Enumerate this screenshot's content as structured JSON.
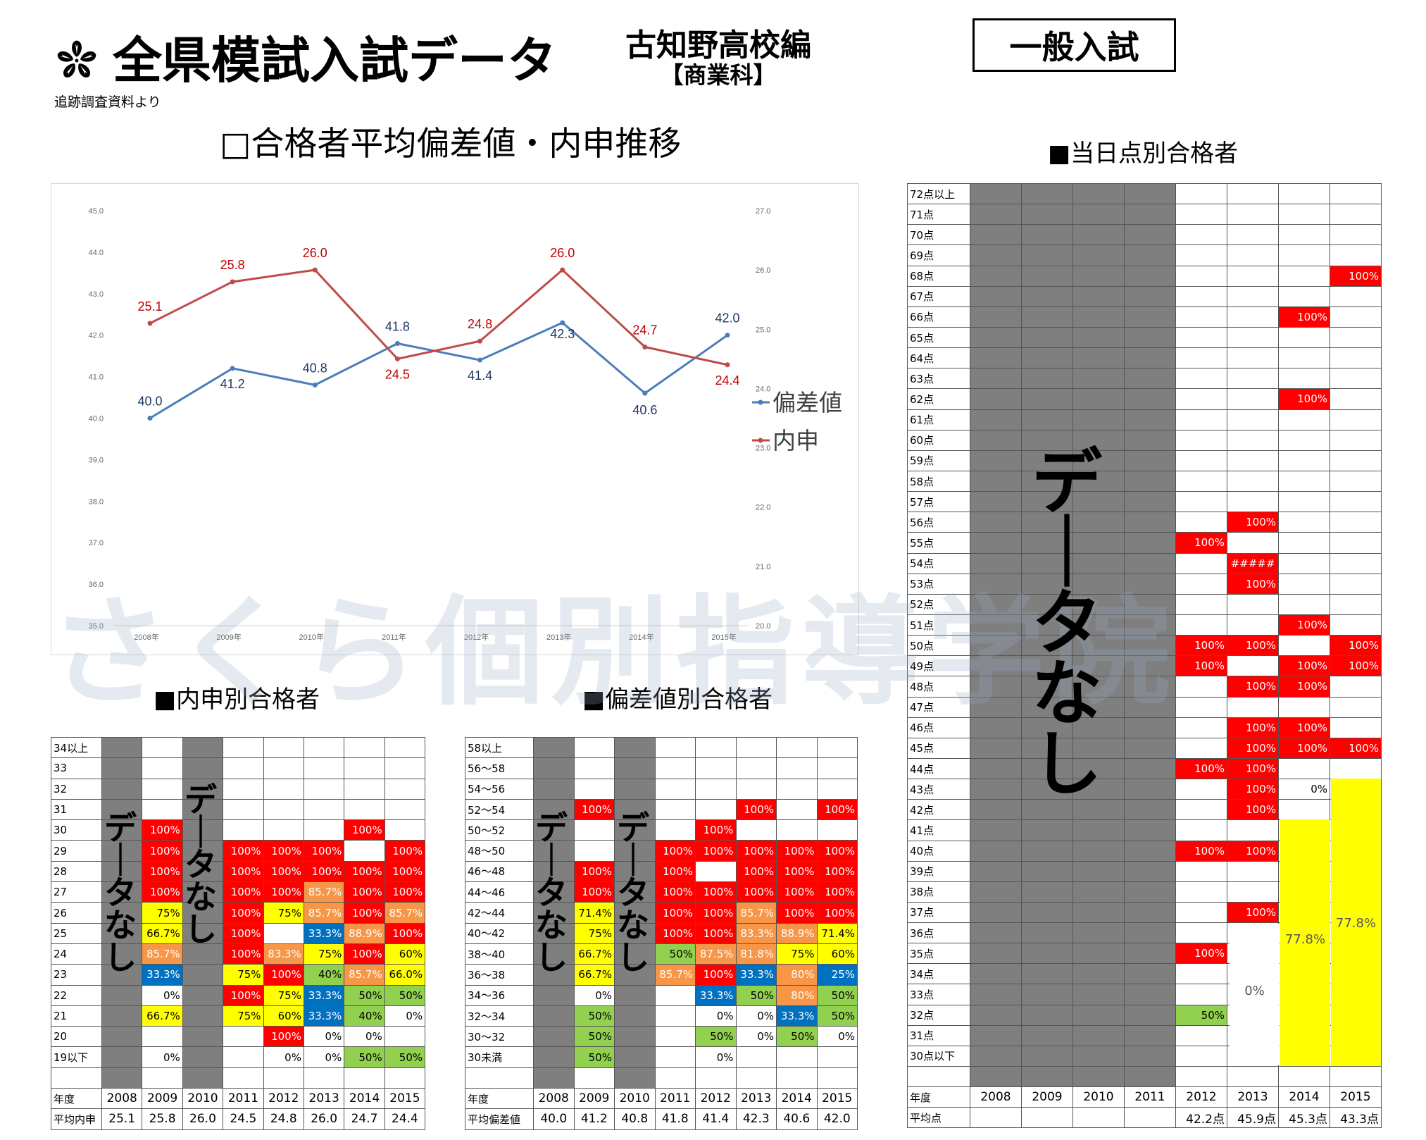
{
  "header": {
    "main_title": "全県模試入試データ",
    "source_note": "追跡調査資料より",
    "school": "古知野高校編",
    "department": "【商業科】",
    "exam_type": "一般入試",
    "watermark": "さくら個別指導学院"
  },
  "sections": {
    "chart_title": "□合格者平均偏差値・内申推移",
    "naishin_title": "■内申別合格者",
    "hensachi_title": "■偏差値別合格者",
    "score_title": "■当日点別合格者",
    "no_data": "データなし"
  },
  "chart_data": {
    "type": "line",
    "categories": [
      "2008年",
      "2009年",
      "2010年",
      "2011年",
      "2012年",
      "2013年",
      "2014年",
      "2015年"
    ],
    "series": [
      {
        "name": "偏差値",
        "axis": "left",
        "color": "#4a7ebb",
        "values": [
          40.0,
          41.2,
          40.8,
          41.8,
          41.4,
          42.3,
          40.6,
          42.0
        ],
        "labels": [
          "40.0",
          "41.2",
          "40.8",
          "41.8",
          "41.4",
          "42.3",
          "40.6",
          "42.0"
        ]
      },
      {
        "name": "内申",
        "axis": "right",
        "color": "#be4b48",
        "values": [
          25.1,
          25.8,
          26.0,
          24.5,
          24.8,
          26.0,
          24.7,
          24.4
        ],
        "labels": [
          "25.1",
          "25.8",
          "26.0",
          "24.5",
          "24.8",
          "26.0",
          "24.7",
          "24.4"
        ]
      }
    ],
    "y_left": {
      "min": 35.0,
      "max": 45.0,
      "ticks": [
        "35.0",
        "36.0",
        "37.0",
        "38.0",
        "39.0",
        "40.0",
        "41.0",
        "42.0",
        "43.0",
        "44.0",
        "45.0"
      ]
    },
    "y_right": {
      "min": 20.0,
      "max": 27.0,
      "ticks": [
        "20.0",
        "21.0",
        "22.0",
        "23.0",
        "24.0",
        "25.0",
        "26.0",
        "27.0"
      ]
    },
    "legend": "right",
    "grid": false
  },
  "naishin_table": {
    "years": [
      "2008",
      "2009",
      "2010",
      "2011",
      "2012",
      "2013",
      "2014",
      "2015"
    ],
    "gray_cols": [
      0,
      2
    ],
    "rows": [
      {
        "label": "34以上",
        "cells": [
          "",
          "",
          "",
          "",
          "",
          "",
          "",
          ""
        ]
      },
      {
        "label": "33",
        "cells": [
          "",
          "",
          "",
          "",
          "",
          "",
          "",
          ""
        ]
      },
      {
        "label": "32",
        "cells": [
          "",
          "",
          "",
          "",
          "",
          "",
          "",
          ""
        ]
      },
      {
        "label": "31",
        "cells": [
          "",
          "",
          "",
          "",
          "",
          "",
          "",
          ""
        ]
      },
      {
        "label": "30",
        "cells": [
          "",
          "r:100%",
          "",
          "",
          "",
          "",
          "r:100%",
          ""
        ]
      },
      {
        "label": "29",
        "cells": [
          "",
          "r:100%",
          "",
          "r:100%",
          "r:100%",
          "r:100%",
          "",
          "r:100%"
        ]
      },
      {
        "label": "28",
        "cells": [
          "",
          "r:100%",
          "",
          "r:100%",
          "r:100%",
          "r:100%",
          "r:100%",
          "r:100%"
        ]
      },
      {
        "label": "27",
        "cells": [
          "",
          "r:100%",
          "",
          "r:100%",
          "r:100%",
          "o:85.7%",
          "r:100%",
          "r:100%"
        ]
      },
      {
        "label": "26",
        "cells": [
          "",
          "y:75%",
          "",
          "r:100%",
          "y:75%",
          "o:85.7%",
          "r:100%",
          "o:85.7%"
        ]
      },
      {
        "label": "25",
        "cells": [
          "",
          "y:66.7%",
          "",
          "r:100%",
          "",
          "b:33.3%",
          "o:88.9%",
          "r:100%"
        ]
      },
      {
        "label": "24",
        "cells": [
          "",
          "o:85.7%",
          "",
          "r:100%",
          "o:83.3%",
          "y:75%",
          "r:100%",
          "y:60%"
        ]
      },
      {
        "label": "23",
        "cells": [
          "",
          "b:33.3%",
          "",
          "y:75%",
          "r:100%",
          "g:40%",
          "o:85.7%",
          "y:66.0%"
        ]
      },
      {
        "label": "22",
        "cells": [
          "",
          "w:0%",
          "",
          "r:100%",
          "y:75%",
          "b:33.3%",
          "g:50%",
          "g:50%"
        ]
      },
      {
        "label": "21",
        "cells": [
          "",
          "y:66.7%",
          "",
          "y:75%",
          "y:60%",
          "b:33.3%",
          "g:40%",
          "w:0%"
        ]
      },
      {
        "label": "20",
        "cells": [
          "",
          "",
          "",
          "",
          "r:100%",
          "w:0%",
          "w:0%",
          ""
        ]
      },
      {
        "label": "19以下",
        "cells": [
          "",
          "w:0%",
          "",
          "",
          "w:0%",
          "w:0%",
          "g:50%",
          "g:50%"
        ]
      },
      {
        "label": "",
        "cells": [
          "",
          "",
          "",
          "",
          "",
          "",
          "",
          ""
        ]
      }
    ],
    "foot_year_label": "年度",
    "foot_avg_label": "平均内申",
    "averages": [
      "25.1",
      "25.8",
      "26.0",
      "24.5",
      "24.8",
      "26.0",
      "24.7",
      "24.4"
    ]
  },
  "hensachi_table": {
    "years": [
      "2008",
      "2009",
      "2010",
      "2011",
      "2012",
      "2013",
      "2014",
      "2015"
    ],
    "gray_cols": [
      0,
      2
    ],
    "rows": [
      {
        "label": "58以上",
        "cells": [
          "",
          "",
          "",
          "",
          "",
          "",
          "",
          ""
        ]
      },
      {
        "label": "56～58",
        "cells": [
          "",
          "",
          "",
          "",
          "",
          "",
          "",
          ""
        ]
      },
      {
        "label": "54～56",
        "cells": [
          "",
          "",
          "",
          "",
          "",
          "",
          "",
          ""
        ]
      },
      {
        "label": "52～54",
        "cells": [
          "",
          "r:100%",
          "",
          "",
          "",
          "r:100%",
          "",
          "r:100%"
        ]
      },
      {
        "label": "50～52",
        "cells": [
          "",
          "",
          "",
          "",
          "r:100%",
          "",
          "",
          ""
        ]
      },
      {
        "label": "48～50",
        "cells": [
          "",
          "",
          "",
          "r:100%",
          "r:100%",
          "r:100%",
          "r:100%",
          "r:100%"
        ]
      },
      {
        "label": "46～48",
        "cells": [
          "",
          "r:100%",
          "",
          "r:100%",
          "",
          "r:100%",
          "r:100%",
          "r:100%"
        ]
      },
      {
        "label": "44～46",
        "cells": [
          "",
          "r:100%",
          "",
          "r:100%",
          "r:100%",
          "r:100%",
          "r:100%",
          "r:100%"
        ]
      },
      {
        "label": "42～44",
        "cells": [
          "",
          "y:71.4%",
          "",
          "r:100%",
          "r:100%",
          "o:85.7%",
          "r:100%",
          "r:100%"
        ]
      },
      {
        "label": "40～42",
        "cells": [
          "",
          "y:75%",
          "",
          "r:100%",
          "r:100%",
          "o:83.3%",
          "o:88.9%",
          "y:71.4%"
        ]
      },
      {
        "label": "38～40",
        "cells": [
          "",
          "y:66.7%",
          "",
          "g:50%",
          "o:87.5%",
          "o:81.8%",
          "y:75%",
          "y:60%"
        ]
      },
      {
        "label": "36～38",
        "cells": [
          "",
          "y:66.7%",
          "",
          "o:85.7%",
          "r:100%",
          "b:33.3%",
          "o:80%",
          "b:25%"
        ]
      },
      {
        "label": "34～36",
        "cells": [
          "",
          "w:0%",
          "",
          "",
          "b:33.3%",
          "g:50%",
          "o:80%",
          "g:50%"
        ]
      },
      {
        "label": "32～34",
        "cells": [
          "",
          "g:50%",
          "",
          "",
          "w:0%",
          "w:0%",
          "b:33.3%",
          "g:50%"
        ]
      },
      {
        "label": "30～32",
        "cells": [
          "",
          "g:50%",
          "",
          "",
          "g:50%",
          "w:0%",
          "g:50%",
          "w:0%"
        ]
      },
      {
        "label": "30未満",
        "cells": [
          "",
          "g:50%",
          "",
          "",
          "w:0%",
          "",
          "",
          ""
        ]
      },
      {
        "label": "",
        "cells": [
          "",
          "",
          "",
          "",
          "",
          "",
          "",
          ""
        ]
      }
    ],
    "foot_year_label": "年度",
    "foot_avg_label": "平均偏差値",
    "averages": [
      "40.0",
      "41.2",
      "40.8",
      "41.8",
      "41.4",
      "42.3",
      "40.6",
      "42.0"
    ]
  },
  "score_table": {
    "years": [
      "2008",
      "2009",
      "2010",
      "2011",
      "2012",
      "2013",
      "2014",
      "2015"
    ],
    "rows": [
      {
        "label": "72点以上",
        "cells": [
          "",
          "",
          "",
          ""
        ]
      },
      {
        "label": "71点",
        "cells": [
          "",
          "",
          "",
          ""
        ]
      },
      {
        "label": "70点",
        "cells": [
          "",
          "",
          "",
          ""
        ]
      },
      {
        "label": "69点",
        "cells": [
          "",
          "",
          "",
          ""
        ]
      },
      {
        "label": "68点",
        "cells": [
          "",
          "",
          "",
          "r:100%"
        ]
      },
      {
        "label": "67点",
        "cells": [
          "",
          "",
          "",
          ""
        ]
      },
      {
        "label": "66点",
        "cells": [
          "",
          "",
          "r:100%",
          ""
        ]
      },
      {
        "label": "65点",
        "cells": [
          "",
          "",
          "",
          ""
        ]
      },
      {
        "label": "64点",
        "cells": [
          "",
          "",
          "",
          ""
        ]
      },
      {
        "label": "63点",
        "cells": [
          "",
          "",
          "",
          ""
        ]
      },
      {
        "label": "62点",
        "cells": [
          "",
          "",
          "r:100%",
          ""
        ]
      },
      {
        "label": "61点",
        "cells": [
          "",
          "",
          "",
          ""
        ]
      },
      {
        "label": "60点",
        "cells": [
          "",
          "",
          "",
          ""
        ]
      },
      {
        "label": "59点",
        "cells": [
          "",
          "",
          "",
          ""
        ]
      },
      {
        "label": "58点",
        "cells": [
          "",
          "",
          "",
          ""
        ]
      },
      {
        "label": "57点",
        "cells": [
          "",
          "",
          "",
          ""
        ]
      },
      {
        "label": "56点",
        "cells": [
          "",
          "r:100%",
          "",
          ""
        ]
      },
      {
        "label": "55点",
        "cells": [
          "r:100%",
          "",
          "",
          ""
        ]
      },
      {
        "label": "54点",
        "cells": [
          "",
          "h:#####",
          "",
          ""
        ]
      },
      {
        "label": "53点",
        "cells": [
          "",
          "r:100%",
          "",
          ""
        ]
      },
      {
        "label": "52点",
        "cells": [
          "",
          "",
          "",
          ""
        ]
      },
      {
        "label": "51点",
        "cells": [
          "",
          "",
          "r:100%",
          ""
        ]
      },
      {
        "label": "50点",
        "cells": [
          "r:100%",
          "r:100%",
          "",
          "r:100%"
        ]
      },
      {
        "label": "49点",
        "cells": [
          "r:100%",
          "",
          "r:100%",
          "r:100%"
        ]
      },
      {
        "label": "48点",
        "cells": [
          "",
          "r:100%",
          "r:100%",
          ""
        ]
      },
      {
        "label": "47点",
        "cells": [
          "",
          "",
          "",
          ""
        ]
      },
      {
        "label": "46点",
        "cells": [
          "",
          "r:100%",
          "r:100%",
          ""
        ]
      },
      {
        "label": "45点",
        "cells": [
          "",
          "r:100%",
          "r:100%",
          "r:100%"
        ]
      },
      {
        "label": "44点",
        "cells": [
          "r:100%",
          "r:100%",
          "",
          ""
        ]
      },
      {
        "label": "43点",
        "cells": [
          "",
          "r:100%",
          "w:0%",
          ""
        ]
      },
      {
        "label": "42点",
        "cells": [
          "",
          "r:100%",
          "",
          ""
        ]
      },
      {
        "label": "41点",
        "cells": [
          "",
          "",
          "",
          ""
        ]
      },
      {
        "label": "40点",
        "cells": [
          "r:100%",
          "r:100%",
          "",
          ""
        ]
      },
      {
        "label": "39点",
        "cells": [
          "",
          "",
          "",
          ""
        ]
      },
      {
        "label": "38点",
        "cells": [
          "",
          "",
          "",
          ""
        ]
      },
      {
        "label": "37点",
        "cells": [
          "",
          "r:100%",
          "",
          ""
        ]
      },
      {
        "label": "36点",
        "cells": [
          "",
          "",
          "",
          ""
        ]
      },
      {
        "label": "35点",
        "cells": [
          "r:100%",
          "",
          "",
          ""
        ]
      },
      {
        "label": "34点",
        "cells": [
          "",
          "",
          "",
          ""
        ]
      },
      {
        "label": "33点",
        "cells": [
          "",
          "",
          "",
          ""
        ]
      },
      {
        "label": "32点",
        "cells": [
          "g:50%",
          "",
          "",
          ""
        ]
      },
      {
        "label": "31点",
        "cells": [
          "",
          "",
          "",
          ""
        ]
      },
      {
        "label": "30点以下",
        "cells": [
          "",
          "",
          "",
          ""
        ]
      },
      {
        "label": "",
        "cells": [
          "",
          "",
          "",
          ""
        ]
      }
    ],
    "merged_2013_zero": "0%",
    "merged_2014": "77.8%",
    "merged_2015": "77.8%",
    "foot_year_label": "年度",
    "foot_avg_label": "平均点",
    "averages": [
      "",
      "",
      "",
      "",
      "42.2点",
      "45.9点",
      "45.3点",
      "43.3点"
    ]
  }
}
